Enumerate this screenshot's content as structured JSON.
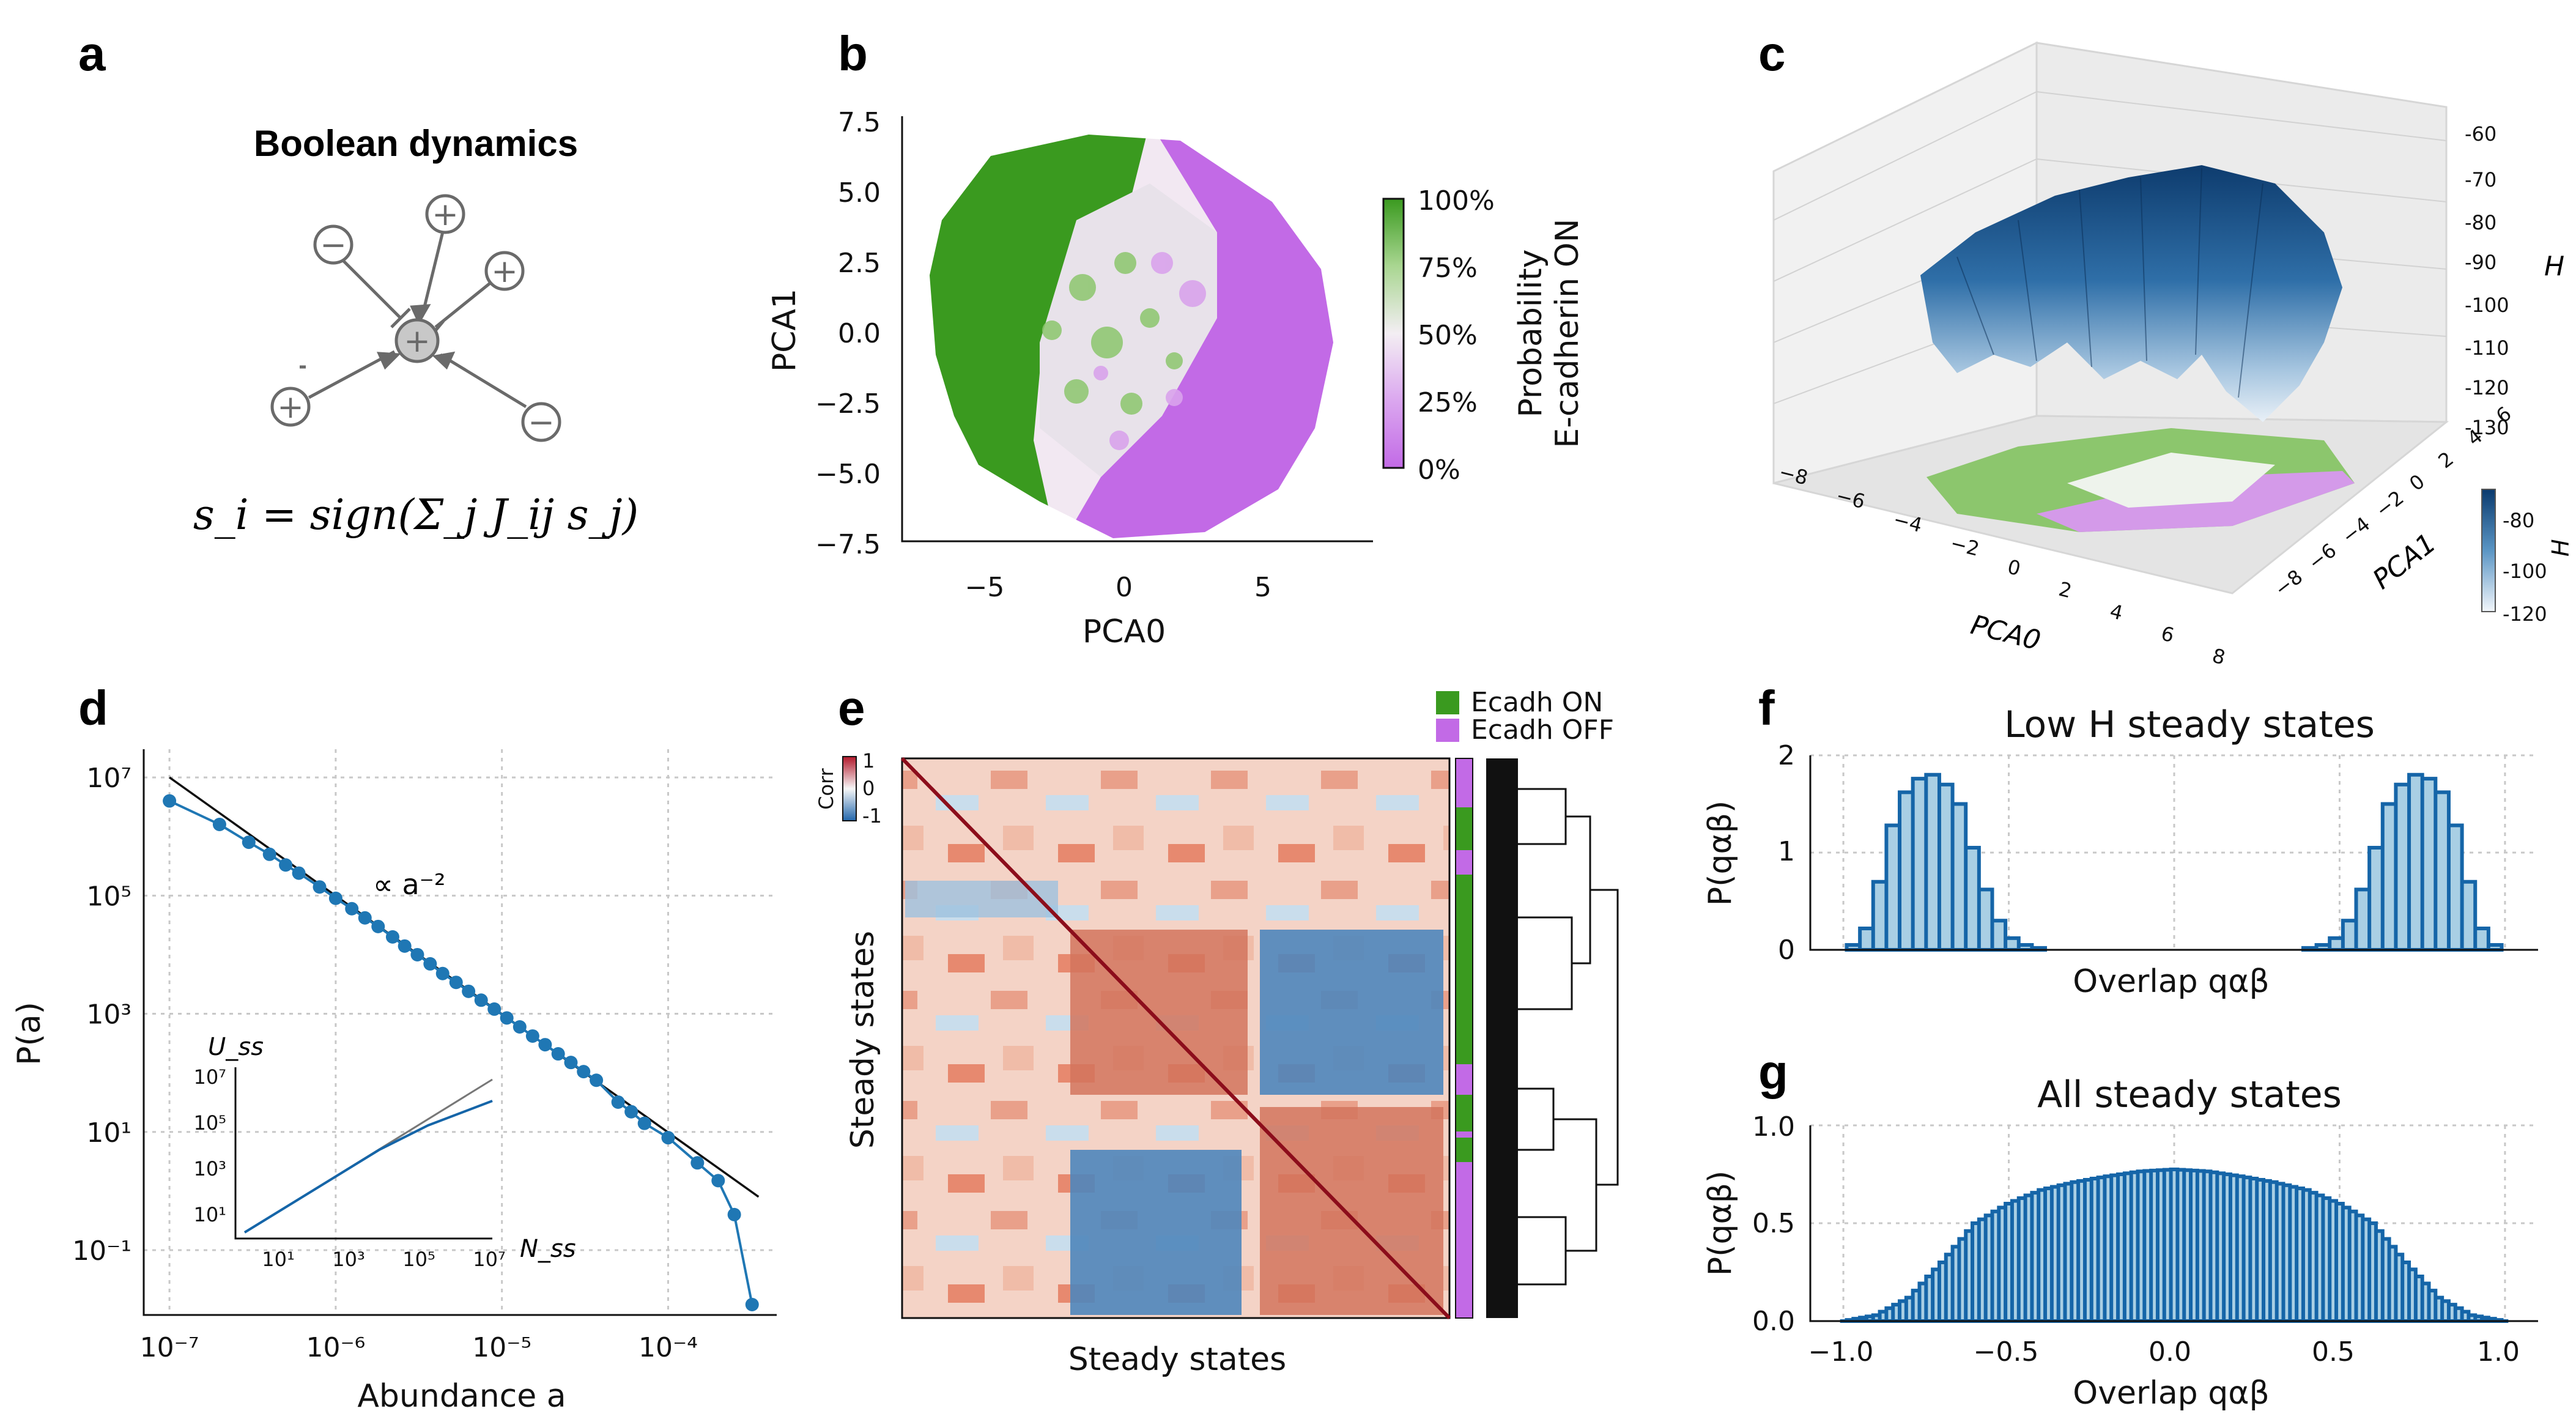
{
  "panels": {
    "a": {
      "label": "a",
      "title": "Boolean dynamics",
      "equation": "s_i = sign(Σ_j J_ij s_j)",
      "nodes": [
        "−",
        "+",
        "+",
        "+",
        "−",
        "+"
      ]
    },
    "b": {
      "label": "b",
      "xlabel": "PCA0",
      "ylabel": "PCA1",
      "xticks": [
        "−5",
        "0",
        "5"
      ],
      "yticks": [
        "7.5",
        "5.0",
        "2.5",
        "0.0",
        "−2.5",
        "−5.0",
        "−7.5"
      ],
      "cbar_title_1": "Probability",
      "cbar_title_2": "E-cadherin ON",
      "cbar_ticks": [
        "100%",
        "75%",
        "50%",
        "25%",
        "0%"
      ]
    },
    "c": {
      "label": "c",
      "xlabel": "PCA0",
      "ylabel": "PCA1",
      "zlabel": "H",
      "xticks": [
        "−8",
        "−6",
        "−4",
        "−2",
        "0",
        "2",
        "4",
        "6",
        "8"
      ],
      "yticks": [
        "8",
        "6",
        "4",
        "2",
        "0",
        "−2",
        "−4",
        "−6",
        "−8"
      ],
      "zticks": [
        "-60",
        "-70",
        "-80",
        "-90",
        "-100",
        "-110",
        "-120",
        "-130"
      ],
      "cbar_label": "H",
      "cbar_ticks": [
        "-80",
        "-100",
        "-120"
      ]
    },
    "d": {
      "label": "d",
      "xlabel": "Abundance a",
      "ylabel": "P(a)",
      "annotation": "∝ a⁻²",
      "xticks": [
        "10⁻⁷",
        "10⁻⁶",
        "10⁻⁵",
        "10⁻⁴"
      ],
      "yticks": [
        "10⁷",
        "10⁵",
        "10³",
        "10¹",
        "10⁻¹"
      ],
      "inset_xlabel": "N_ss",
      "inset_ylabel": "U_ss",
      "inset_xticks": [
        "10¹",
        "10³",
        "10⁵",
        "10⁷"
      ],
      "inset_yticks": [
        "10⁷",
        "10⁵",
        "10³",
        "10¹"
      ]
    },
    "e": {
      "label": "e",
      "xlabel": "Steady states",
      "ylabel": "Steady states",
      "legend": [
        "Ecadh ON",
        "Ecadh OFF"
      ],
      "corr_label": "Corr",
      "corr_ticks": [
        "1",
        "0",
        "-1"
      ]
    },
    "f": {
      "label": "f",
      "title": "Low H steady states",
      "xlabel": "Overlap qαβ",
      "ylabel": "P(qαβ)",
      "yticks": [
        "2",
        "1",
        "0"
      ]
    },
    "g": {
      "label": "g",
      "title": "All steady states",
      "xlabel": "Overlap qαβ",
      "ylabel": "P(qαβ)",
      "xticks": [
        "−1.0",
        "−0.5",
        "0.0",
        "0.5",
        "1.0"
      ],
      "yticks": [
        "1.0",
        "0.5",
        "0.0"
      ]
    }
  },
  "colors": {
    "green": "#3a9a1f",
    "purple": "#c26ae6",
    "blue": "#1f77b4",
    "fill": "#a9cfe4",
    "line": "#1565a8"
  },
  "chart_data": [
    {
      "type": "scatter",
      "panel": "d",
      "xlabel": "Abundance a",
      "ylabel": "P(a)",
      "xscale": "log",
      "yscale": "log",
      "xlim": [
        7e-08,
        0.00045
      ],
      "ylim": [
        0.008,
        30000000.0
      ],
      "x": [
        1e-07,
        2e-07,
        3e-07,
        4e-07,
        5e-07,
        6e-07,
        8e-07,
        1e-06,
        1.25e-06,
        1.5e-06,
        1.8e-06,
        2.2e-06,
        2.6e-06,
        3.1e-06,
        3.7e-06,
        4.4e-06,
        5.3e-06,
        6.3e-06,
        7.5e-06,
        9e-06,
        1.07e-05,
        1.28e-05,
        1.53e-05,
        1.82e-05,
        2.18e-05,
        2.6e-05,
        3.1e-05,
        3.7e-05,
        5e-05,
        6e-05,
        7.2e-05,
        0.0001,
        0.00015,
        0.0002,
        0.00025,
        0.00032
      ],
      "y": [
        4000000.0,
        1600000.0,
        800000.0,
        500000.0,
        330000.0,
        240000.0,
        140000.0,
        90000.0,
        60000.0,
        42000.0,
        30000.0,
        20000.0,
        14000.0,
        10000.0,
        7000.0,
        4800.0,
        3400.0,
        2400.0,
        1700.0,
        1200.0,
        850,
        600,
        420,
        300,
        210,
        150,
        105,
        75,
        32,
        22,
        14,
        8,
        3,
        1.5,
        0.4,
        0.012
      ],
      "fit_line": {
        "label": "∝ a⁻²",
        "x": [
          1e-07,
          0.00035
        ],
        "y": [
          10000000.0,
          0.8
        ]
      }
    },
    {
      "type": "line",
      "panel": "d-inset",
      "xlabel": "N_ss",
      "ylabel": "U_ss",
      "xscale": "log",
      "yscale": "log",
      "series": [
        {
          "x": [
            3,
            10000000.0
          ],
          "y": [
            3,
            600000.0
          ]
        },
        {
          "x": [
            3,
            10000.0,
            100000.0,
            1000000.0,
            10000000.0
          ],
          "y": [
            3,
            30000.0,
            200000.0,
            400000.0,
            700000.0
          ]
        }
      ]
    },
    {
      "type": "bar",
      "panel": "f",
      "title": "Low H steady states",
      "xlabel": "Overlap qαβ",
      "ylabel": "P(qαβ)",
      "ylim": [
        0,
        2
      ],
      "x": [
        -0.97,
        -0.93,
        -0.89,
        -0.85,
        -0.81,
        -0.77,
        -0.73,
        -0.69,
        -0.65,
        -0.61,
        -0.57,
        -0.53,
        -0.49,
        -0.45,
        -0.41,
        0.41,
        0.45,
        0.49,
        0.53,
        0.57,
        0.61,
        0.65,
        0.69,
        0.73,
        0.77,
        0.81,
        0.85,
        0.89,
        0.93,
        0.97
      ],
      "y": [
        0.05,
        0.22,
        0.7,
        1.28,
        1.62,
        1.76,
        1.8,
        1.7,
        1.5,
        1.05,
        0.62,
        0.3,
        0.12,
        0.05,
        0.02,
        0.02,
        0.05,
        0.12,
        0.3,
        0.62,
        1.05,
        1.5,
        1.7,
        1.8,
        1.76,
        1.62,
        1.28,
        0.7,
        0.22,
        0.05
      ]
    },
    {
      "type": "area",
      "panel": "g",
      "title": "All steady states",
      "xlabel": "Overlap qαβ",
      "ylabel": "P(qαβ)",
      "xlim": [
        -1.1,
        1.1
      ],
      "ylim": [
        0,
        1.0
      ],
      "x": [
        -1.0,
        -0.9,
        -0.8,
        -0.7,
        -0.6,
        -0.5,
        -0.4,
        -0.3,
        -0.2,
        -0.1,
        0.0,
        0.1,
        0.2,
        0.3,
        0.4,
        0.5,
        0.6,
        0.7,
        0.8,
        0.9,
        1.0
      ],
      "y": [
        0.0,
        0.03,
        0.12,
        0.3,
        0.5,
        0.6,
        0.67,
        0.71,
        0.74,
        0.765,
        0.775,
        0.765,
        0.74,
        0.71,
        0.67,
        0.6,
        0.5,
        0.3,
        0.12,
        0.03,
        0.0
      ]
    }
  ]
}
